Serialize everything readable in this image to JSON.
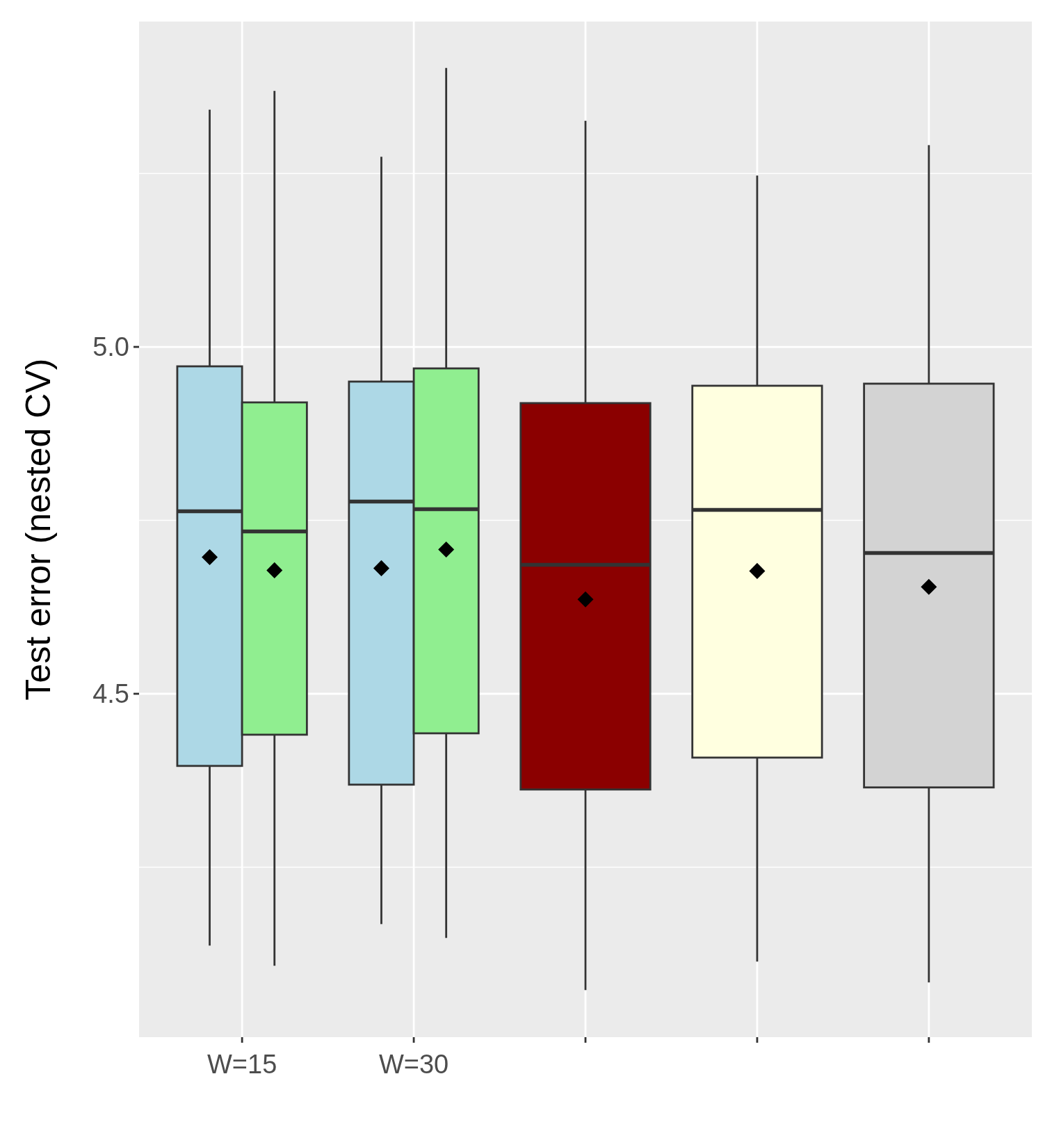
{
  "chart_data": {
    "type": "box",
    "ylabel": "Test error (nested CV)",
    "categories": [
      "W=15",
      "W=30",
      null,
      null,
      null
    ],
    "ylim": [
      4.005,
      5.469
    ],
    "yticks": [
      {
        "value": 4.25,
        "label": null
      },
      {
        "value": 4.5,
        "label": "4.5"
      },
      {
        "value": 4.75,
        "label": null
      },
      {
        "value": 5,
        "label": "5.0"
      },
      {
        "value": 5.25,
        "label": null
      }
    ],
    "grid": true,
    "marker": "diamond",
    "series": [
      {
        "color": "#add8e6",
        "boxes": [
          {
            "low": 4.137,
            "q1": 4.396,
            "median": 4.763,
            "q3": 4.972,
            "high": 5.342,
            "mean": 4.697
          },
          {
            "low": 4.168,
            "q1": 4.369,
            "median": 4.777,
            "q3": 4.95,
            "high": 5.274,
            "mean": 4.681
          },
          null,
          null,
          null
        ]
      },
      {
        "color": "#90ee90",
        "boxes": [
          {
            "low": 4.108,
            "q1": 4.441,
            "median": 4.734,
            "q3": 4.92,
            "high": 5.369,
            "mean": 4.678
          },
          {
            "low": 4.148,
            "q1": 4.443,
            "median": 4.766,
            "q3": 4.969,
            "high": 5.402,
            "mean": 4.708
          },
          null,
          null,
          null
        ]
      },
      {
        "color": "#8b0000",
        "boxes": [
          null,
          null,
          {
            "low": 4.073,
            "q1": 4.362,
            "median": 4.686,
            "q3": 4.919,
            "high": 5.326,
            "mean": 4.636
          },
          null,
          null
        ]
      },
      {
        "color": "#ffffe0",
        "boxes": [
          null,
          null,
          null,
          {
            "low": 4.114,
            "q1": 4.408,
            "median": 4.765,
            "q3": 4.944,
            "high": 5.247,
            "mean": 4.677
          },
          null
        ]
      },
      {
        "color": "#d3d3d3",
        "boxes": [
          null,
          null,
          null,
          null,
          {
            "low": 4.084,
            "q1": 4.365,
            "median": 4.703,
            "q3": 4.947,
            "high": 5.291,
            "mean": 4.654
          }
        ]
      }
    ]
  }
}
